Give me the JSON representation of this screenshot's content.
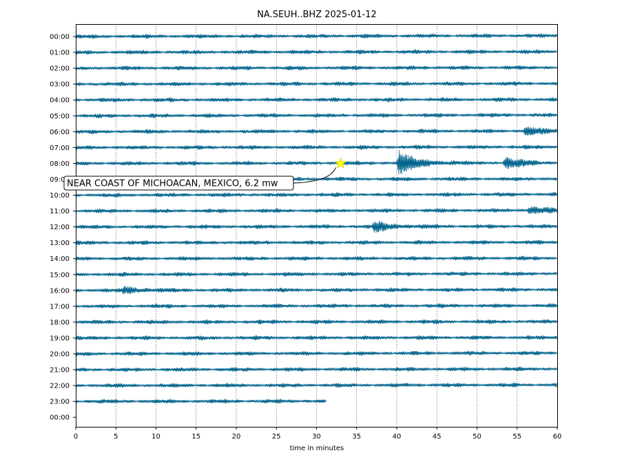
{
  "chart_data": {
    "type": "line",
    "title": "NA.SEUH..BHZ 2025-01-12",
    "xlabel": "time in minutes",
    "ylabel": "",
    "xlim": [
      0,
      60
    ],
    "x_ticks": [
      "0",
      "5",
      "10",
      "15",
      "20",
      "25",
      "30",
      "35",
      "40",
      "45",
      "50",
      "55",
      "60"
    ],
    "y_tick_labels": [
      "00:00",
      "01:00",
      "02:00",
      "03:00",
      "04:00",
      "05:00",
      "06:00",
      "07:00",
      "08:00",
      "09:00",
      "10:00",
      "11:00",
      "12:00",
      "13:00",
      "14:00",
      "15:00",
      "16:00",
      "17:00",
      "18:00",
      "19:00",
      "20:00",
      "21:00",
      "22:00",
      "23:00",
      "00:00"
    ],
    "grid": "vertical dotted",
    "trace_color": "#00638c",
    "last_trace_end_minute": 31.2,
    "events": [
      {
        "label": "NEAR COAST OF MICHOACAN, MEXICO, 6.2 mw",
        "hour": "08:00",
        "minute": 33.0,
        "marker": "star",
        "marker_color": "#ffff00"
      }
    ],
    "notable_signals": [
      {
        "hour": "08:00",
        "minute": 40.3,
        "amplitude": "large"
      },
      {
        "hour": "08:00",
        "minute": 53.5,
        "amplitude": "medium"
      },
      {
        "hour": "12:00",
        "minute": 37.2,
        "amplitude": "medium"
      },
      {
        "hour": "11:00",
        "minute": 56.5,
        "amplitude": "small"
      },
      {
        "hour": "06:00",
        "minute": 56.0,
        "amplitude": "small"
      },
      {
        "hour": "16:00",
        "minute": 6.0,
        "amplitude": "small"
      }
    ]
  }
}
